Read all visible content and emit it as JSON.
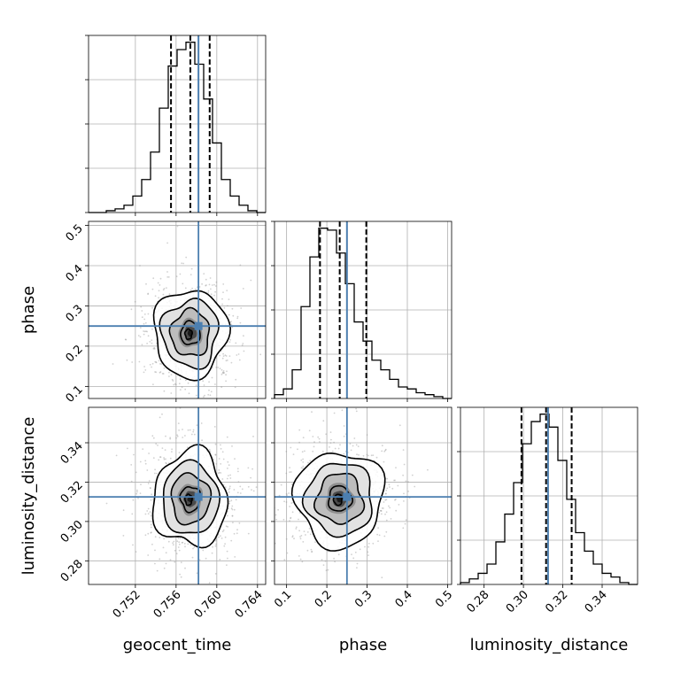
{
  "colors": {
    "truth": "#4c7fb0",
    "hist": "#000000",
    "grid": "#b0b0b0",
    "contour": "#000000"
  },
  "chart_data": {
    "type": "corner",
    "parameters": [
      {
        "name": "geocent_time",
        "truth": 0.7582,
        "quantiles": [
          0.7555,
          0.7574,
          0.7593
        ],
        "range": [
          0.7474,
          0.7648
        ],
        "ticks": [
          0.752,
          0.756,
          0.76,
          0.764
        ],
        "tick_labels": [
          "0.752",
          "0.756",
          "0.760",
          "0.764"
        ],
        "label": "geocent_time",
        "hist_edges_start": 0.7474,
        "hist_bin_width": 0.00087,
        "hist_counts": [
          0,
          0,
          1,
          2,
          4,
          9,
          18,
          33,
          57,
          80,
          89,
          93,
          81,
          62,
          38,
          18,
          9,
          4,
          1,
          0
        ]
      },
      {
        "name": "phase",
        "truth": 0.25,
        "quantiles": [
          0.183,
          0.232,
          0.298
        ],
        "range": [
          0.07,
          0.51
        ],
        "ticks": [
          0.1,
          0.2,
          0.3,
          0.4,
          0.5
        ],
        "tick_labels": [
          "0.1",
          "0.2",
          "0.3",
          "0.4",
          "0.5"
        ],
        "label": "phase",
        "hist_edges_start": 0.07,
        "hist_bin_width": 0.022,
        "hist_counts": [
          2,
          5,
          15,
          48,
          74,
          89,
          88,
          76,
          60,
          40,
          30,
          20,
          15,
          10,
          6,
          5,
          3,
          2,
          1,
          0
        ]
      },
      {
        "name": "luminosity_distance",
        "truth": 0.3125,
        "quantiles": [
          0.299,
          0.3115,
          0.3245
        ],
        "range": [
          0.268,
          0.358
        ],
        "ticks": [
          0.28,
          0.3,
          0.32,
          0.34
        ],
        "tick_labels": [
          "0.28",
          "0.30",
          "0.32",
          "0.34"
        ],
        "label": "luminosity_distance",
        "hist_edges_start": 0.268,
        "hist_bin_width": 0.0045,
        "hist_counts": [
          1,
          3,
          6,
          11,
          23,
          38,
          55,
          76,
          88,
          92,
          85,
          67,
          46,
          28,
          18,
          11,
          6,
          4,
          1,
          0
        ]
      }
    ],
    "panel_y_ticks": {
      "phase": {
        "ticks": [
          0.1,
          0.2,
          0.3,
          0.4,
          0.5
        ],
        "tick_labels": [
          "0.1",
          "0.2",
          "0.3",
          "0.4",
          "0.5"
        ]
      },
      "luminosity_distance": {
        "ticks": [
          0.28,
          0.3,
          0.32,
          0.34
        ],
        "tick_labels": [
          "0.28",
          "0.30",
          "0.32",
          "0.34"
        ]
      }
    },
    "grid": true,
    "axis_labels": {
      "x": [
        "geocent_time",
        "phase",
        "luminosity_distance"
      ],
      "y": [
        "phase",
        "luminosity_distance"
      ]
    }
  }
}
